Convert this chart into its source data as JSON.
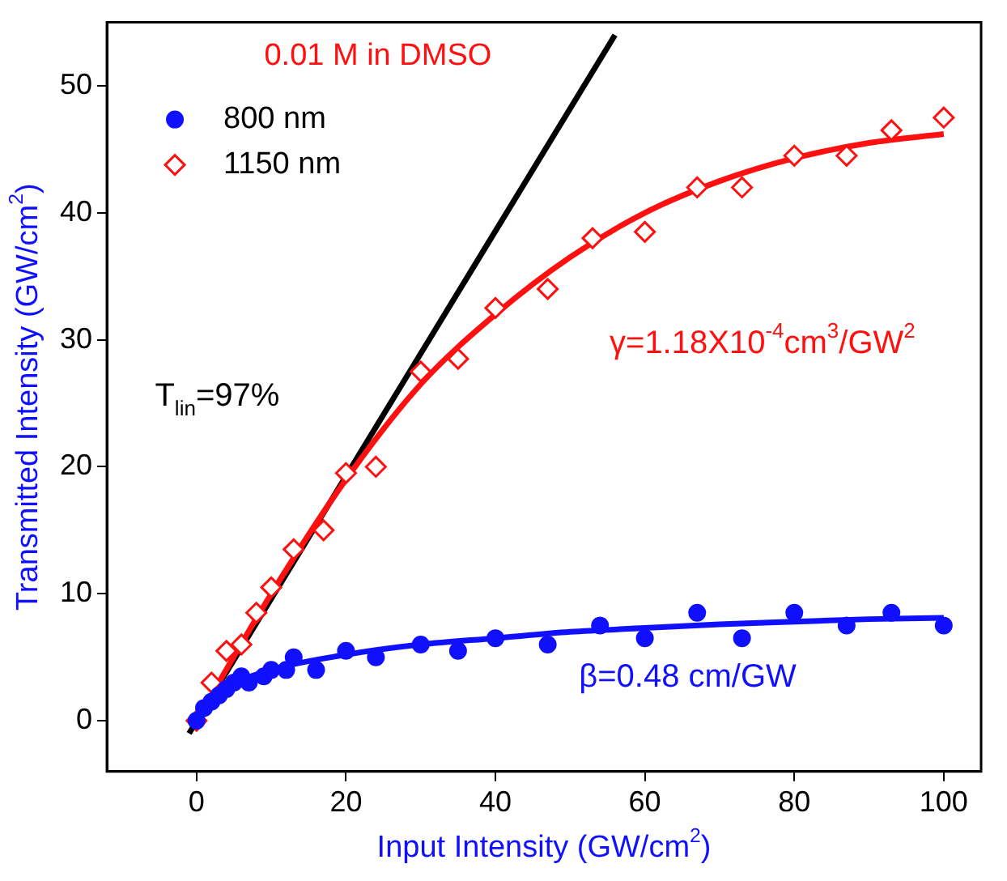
{
  "chart_data": {
    "type": "scatter",
    "xlabel": "Input Intensity (GW/cm$^{2}$)",
    "ylabel": "Transmitted Intensity (GW/cm$^{2}$)",
    "xlim": [
      -12,
      105
    ],
    "ylim": [
      -4,
      55
    ],
    "xticks": [
      0,
      20,
      40,
      60,
      80,
      100
    ],
    "yticks": [
      0,
      10,
      20,
      30,
      40,
      50
    ],
    "grid": false,
    "legend": "top left",
    "series": [
      {
        "name": "800 nm",
        "type": "scatter",
        "marker": "circle",
        "color": "#1010ff",
        "x": [
          0,
          1,
          2,
          3,
          4,
          5,
          6,
          7,
          9,
          10,
          12,
          13,
          16,
          20,
          24,
          30,
          35,
          40,
          47,
          54,
          60,
          67,
          73,
          80,
          87,
          93,
          100
        ],
        "values": [
          0,
          1,
          1.5,
          2,
          2.5,
          3,
          3.5,
          3,
          3.5,
          4,
          4,
          5,
          4,
          5.5,
          5,
          6,
          5.5,
          6.5,
          6,
          7.5,
          6.5,
          8.5,
          6.5,
          8.5,
          7.5,
          8.5,
          7.5
        ]
      },
      {
        "name": "1150 nm",
        "type": "scatter",
        "marker": "diamond",
        "color": "#ff1010",
        "x": [
          0,
          2,
          4,
          6,
          8,
          10,
          13,
          17,
          20,
          24,
          30,
          35,
          40,
          47,
          53,
          60,
          67,
          73,
          80,
          87,
          93,
          100
        ],
        "values": [
          0,
          3,
          5.5,
          6,
          8.5,
          10.5,
          13.5,
          15,
          19.5,
          20,
          27.5,
          28.5,
          32.5,
          34,
          38,
          38.5,
          42,
          42,
          44.5,
          44.5,
          46.5,
          47.5
        ]
      },
      {
        "type": "line",
        "marker": "none",
        "color": "#1010ff",
        "x": [
          0,
          5,
          10,
          20,
          30,
          40,
          50,
          60,
          70,
          80,
          90,
          100
        ],
        "values": [
          0,
          2.8,
          4,
          5.2,
          6,
          6.5,
          7,
          7.3,
          7.6,
          7.8,
          8,
          8.1
        ]
      },
      {
        "type": "line",
        "marker": "none",
        "color": "#ff1010",
        "x": [
          0,
          10,
          20,
          30,
          40,
          50,
          60,
          70,
          80,
          90,
          100
        ],
        "values": [
          0,
          10,
          19,
          26.5,
          32,
          36.5,
          40,
          42.5,
          44.3,
          45.5,
          46.2
        ]
      },
      {
        "type": "line",
        "marker": "none",
        "color": "#000000",
        "x": [
          -1,
          56
        ],
        "values": [
          -1,
          54
        ]
      }
    ],
    "annotations": [
      "0.01 M in DMSO",
      "T$_{lin}$=97%",
      "γ=1.18X10$^{-4}$cm$^{3}$/GW$^{2}$",
      "β=0.48 cm/GW"
    ]
  }
}
